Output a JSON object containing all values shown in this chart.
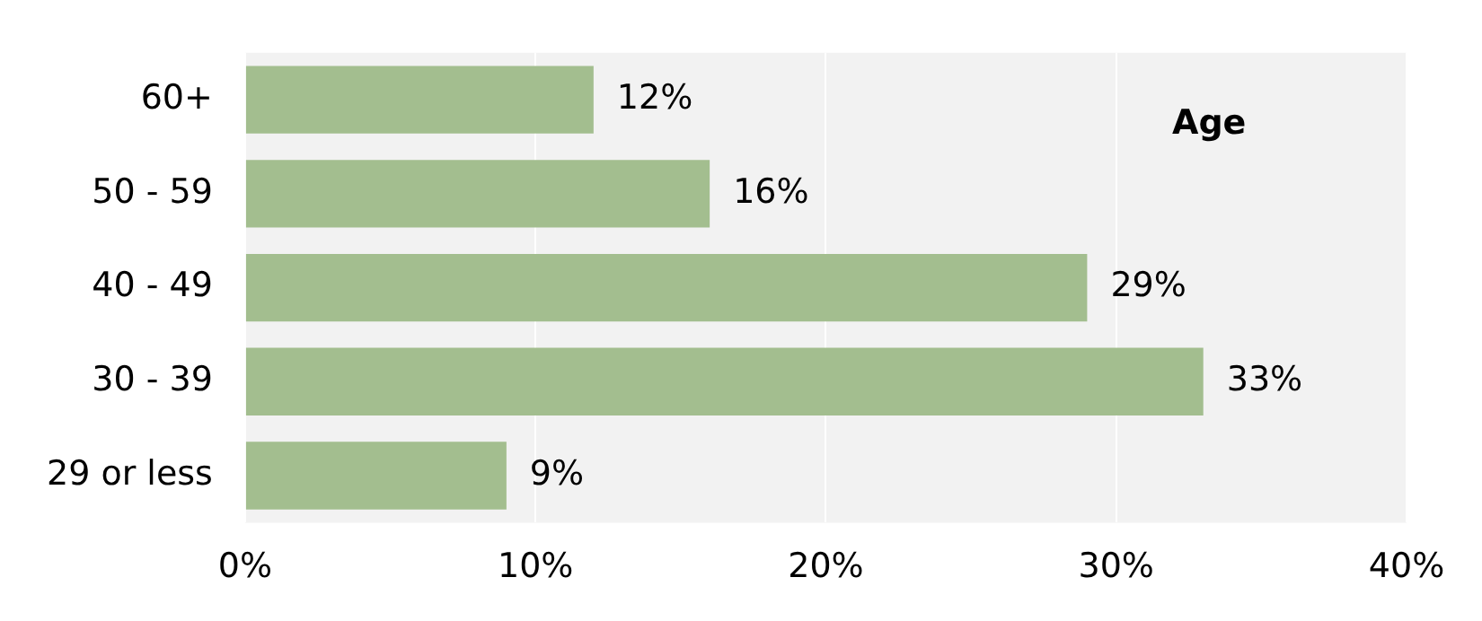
{
  "chart_data": {
    "type": "bar",
    "orientation": "horizontal",
    "title": "Age",
    "categories": [
      "60+",
      "50 - 59",
      "40 - 49",
      "30 - 39",
      "29 or less"
    ],
    "values": [
      12,
      16,
      29,
      33,
      9
    ],
    "value_labels": [
      "12%",
      "16%",
      "29%",
      "33%",
      "9%"
    ],
    "color": "#a3be8f",
    "xlim": [
      0,
      40
    ],
    "xticks": [
      {
        "value": 0,
        "label": "0%"
      },
      {
        "value": 10,
        "label": "10%"
      },
      {
        "value": 20,
        "label": "20%"
      },
      {
        "value": 30,
        "label": "30%"
      },
      {
        "value": 40,
        "label": "40%"
      }
    ],
    "grid": "x",
    "legend": false
  }
}
